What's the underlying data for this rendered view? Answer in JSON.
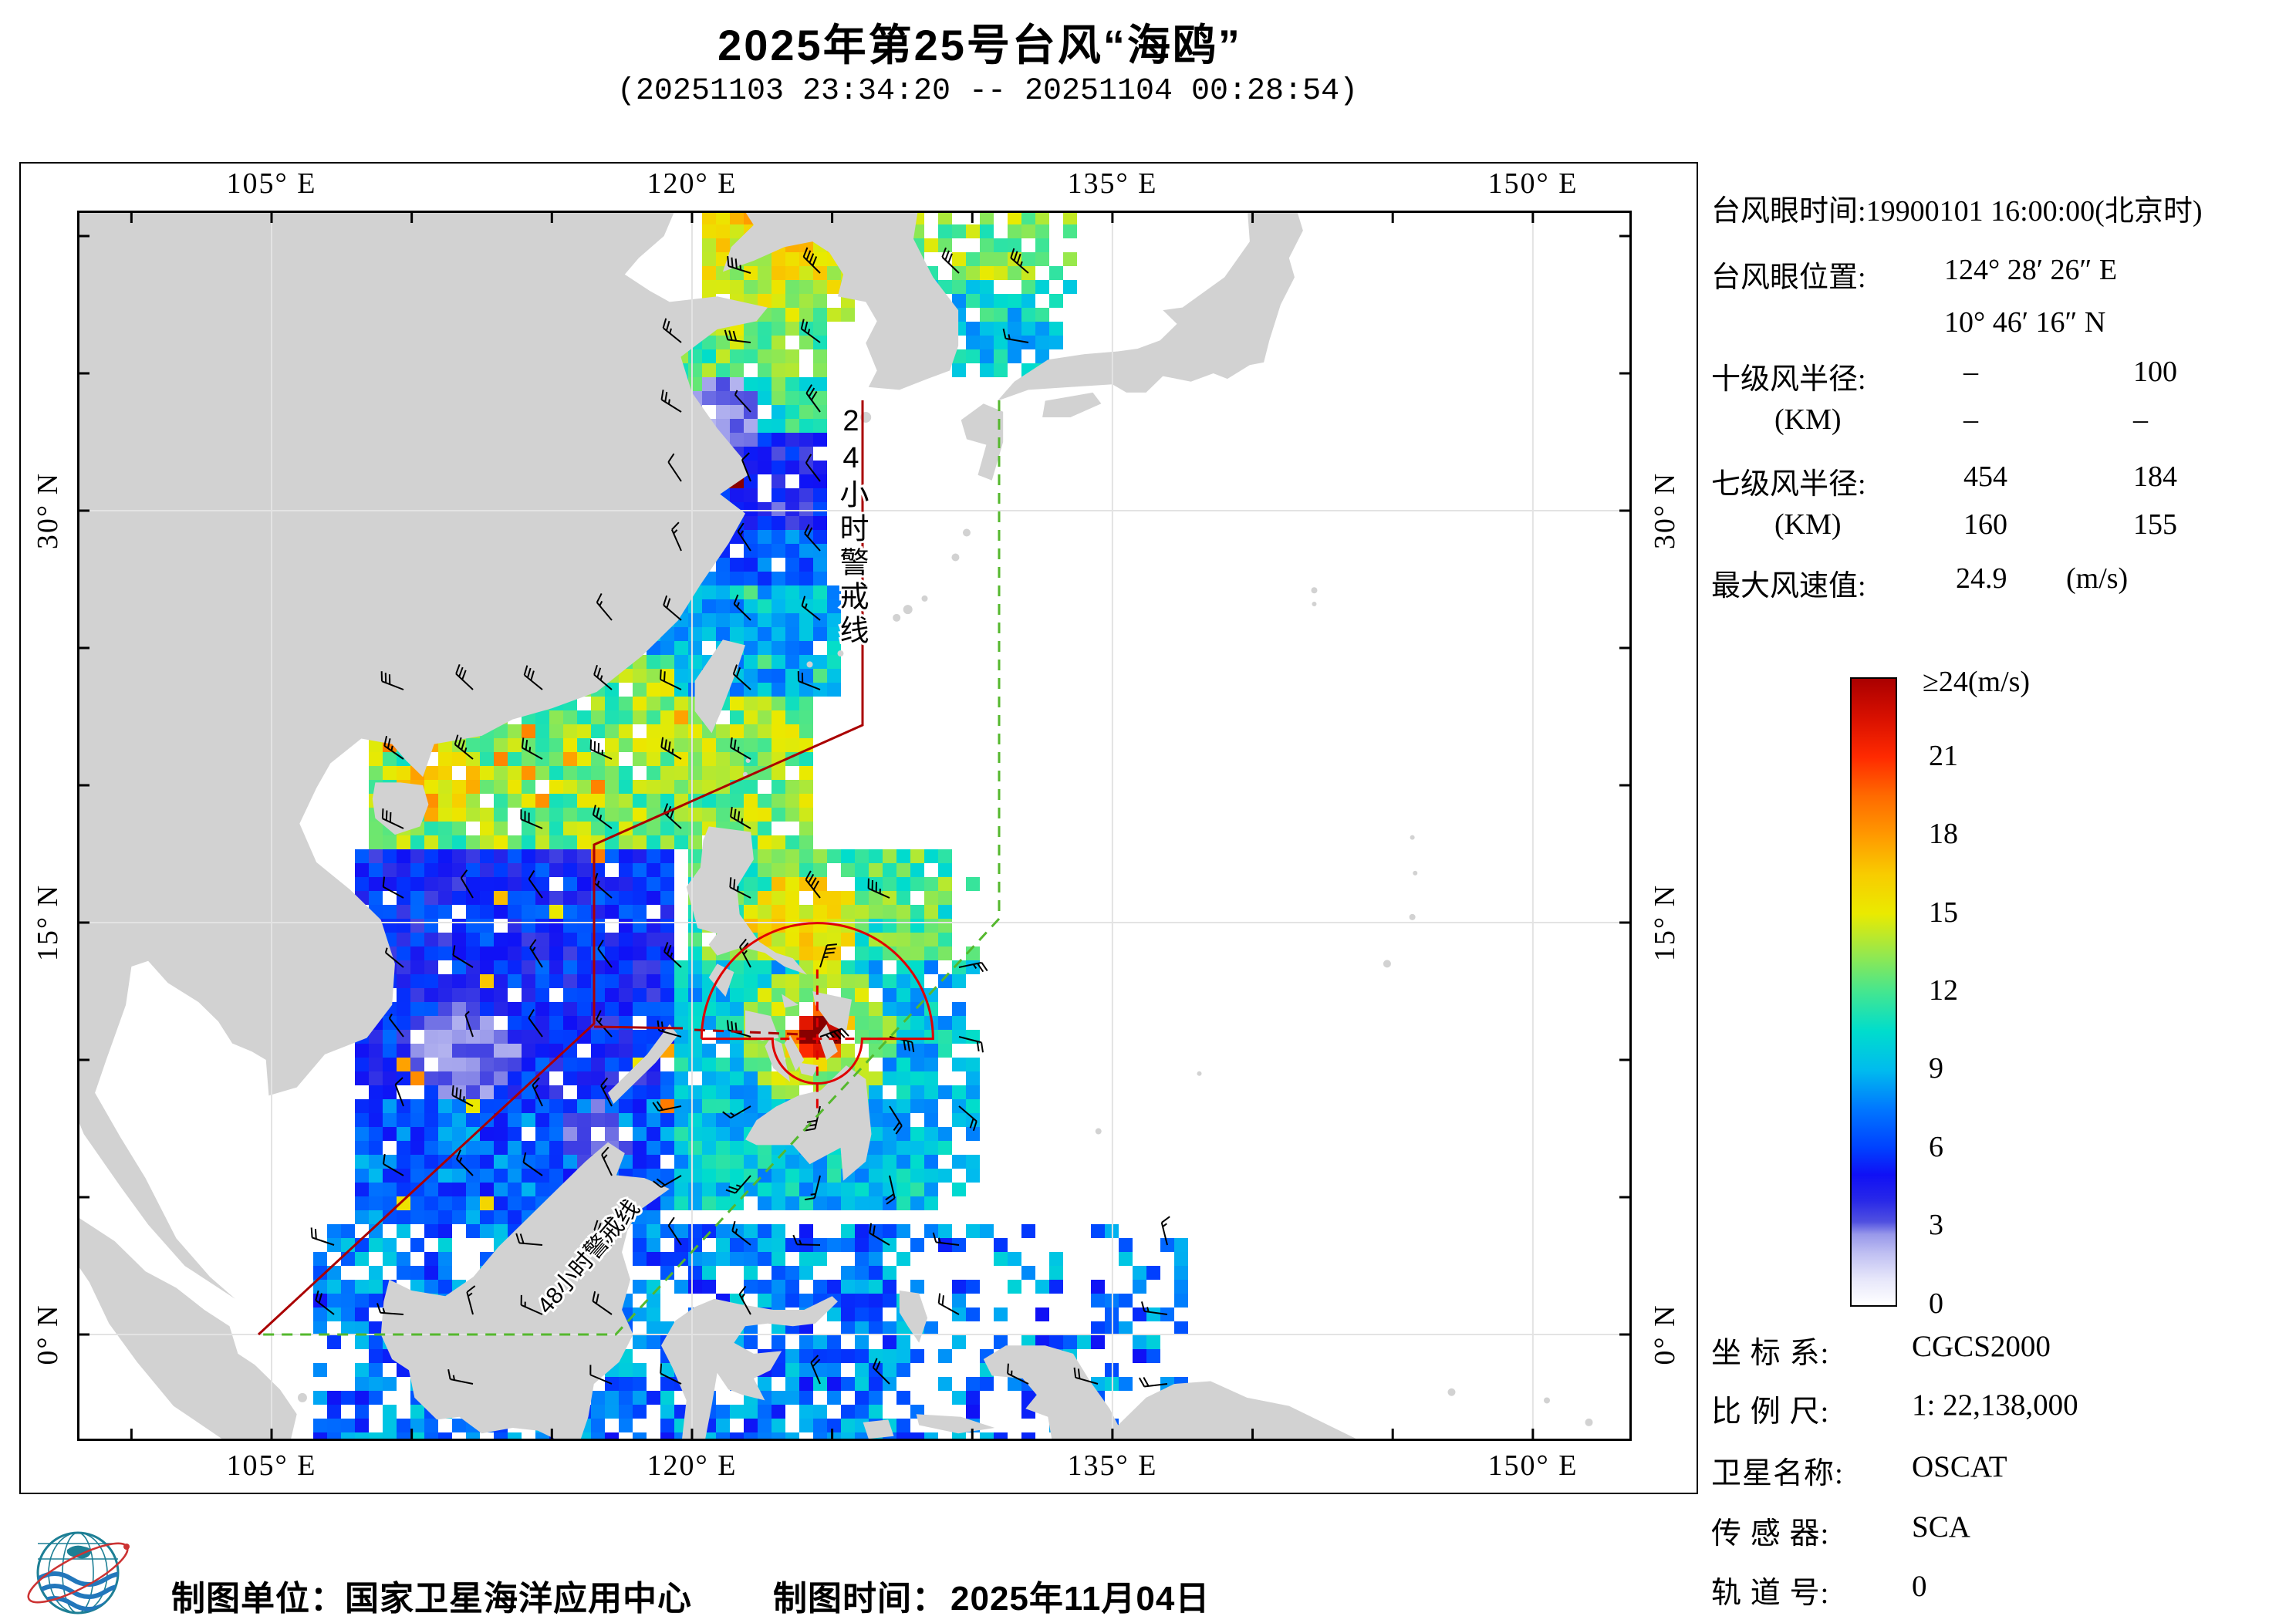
{
  "title": {
    "main": "2025年第25号台风“海鸥”",
    "period": "(20251103 23:34:20 -- 20251104 00:28:54)"
  },
  "map": {
    "lon_labels": [
      "105° E",
      "120° E",
      "135° E",
      "150° E"
    ],
    "lat_labels": [
      "30° N",
      "15° N",
      "0° N"
    ],
    "warn24_label": "24小时警戒线",
    "warn48_label": "48小时警戒线",
    "land_color": "#d2d2d2",
    "warn24_color": "#aa0000",
    "warn48_color": "#55b82e",
    "typhoon_marker_color": "#e00000"
  },
  "info_panel": {
    "eye_time_label": "台风眼时间:",
    "eye_time_value": "19900101 16:00:00(北京时)",
    "eye_pos_label": "台风眼位置:",
    "eye_pos_e": "124° 28′ 26″ E",
    "eye_pos_n": "10° 46′ 16″ N",
    "r10_label": "十级风半径:",
    "r10_unit": "(KM)",
    "r10_values": [
      "–",
      "100",
      "–",
      "–"
    ],
    "r7_label": "七级风半径:",
    "r7_unit": "(KM)",
    "r7_values": [
      "454",
      "184",
      "160",
      "155"
    ],
    "vmax_label": "最大风速值:",
    "vmax_value": "24.9",
    "vmax_unit": "(m/s)"
  },
  "colorbar": {
    "max_label": "≥24(m/s)",
    "ticks": [
      "21",
      "18",
      "15",
      "12",
      "9",
      "6",
      "3",
      "0"
    ],
    "unit": "m/s",
    "min": 0,
    "max": 24,
    "stops": [
      [
        0,
        "#ffffff"
      ],
      [
        1,
        "#e6e6fa"
      ],
      [
        2,
        "#bfbff2"
      ],
      [
        2.7,
        "#9898ea"
      ],
      [
        3.2,
        "#5050e0"
      ],
      [
        4,
        "#2828e8"
      ],
      [
        5,
        "#1010f5"
      ],
      [
        6,
        "#0040ff"
      ],
      [
        7.5,
        "#0077ff"
      ],
      [
        9,
        "#00bbee"
      ],
      [
        10.5,
        "#00ddcc"
      ],
      [
        12,
        "#44e690"
      ],
      [
        13.5,
        "#99e84a"
      ],
      [
        15,
        "#eaea00"
      ],
      [
        16.5,
        "#f8cc00"
      ],
      [
        18,
        "#ff9900"
      ],
      [
        19.5,
        "#ff6a00"
      ],
      [
        21,
        "#ff2a00"
      ],
      [
        22.5,
        "#d81000"
      ],
      [
        24,
        "#aa0000"
      ]
    ]
  },
  "meta": {
    "rows": [
      {
        "label": "坐 标 系:",
        "value": "CGCS2000"
      },
      {
        "label": "比 例 尺:",
        "value": "1: 22,138,000"
      },
      {
        "label": "卫星名称:",
        "value": "OSCAT"
      },
      {
        "label": "传 感 器:",
        "value": "SCA"
      },
      {
        "label": "轨 道 号:",
        "value": "0"
      }
    ]
  },
  "footer": {
    "org": "制图单位：国家卫星海洋应用中心",
    "time_label": "制图时间：",
    "time_value": "2025年11月04日"
  },
  "typhoon": {
    "eye_lon": "124° 28′ 26″ E",
    "eye_lat": "10° 46′ 16″ N",
    "max_wind_ms": 24.9
  }
}
